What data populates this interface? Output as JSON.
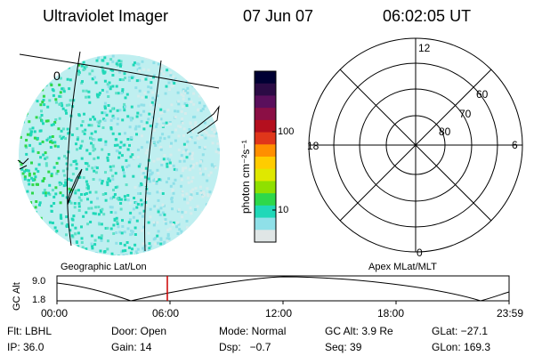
{
  "header": {
    "instrument": "Ultraviolet Imager",
    "date": "07 Jun 07",
    "time": "06:02:05 UT"
  },
  "colorbar": {
    "unit_label": "photon cm⁻²s⁻¹",
    "ticks": [
      "100",
      "10"
    ],
    "colors": [
      "#000033",
      "#2b0b45",
      "#5a0f5c",
      "#8b0f45",
      "#b40f1e",
      "#e0361a",
      "#ff8f00",
      "#ffcc00",
      "#dfe800",
      "#8fe000",
      "#2ed84a",
      "#20d8b8",
      "#8fe0e8",
      "#e0e6e6"
    ]
  },
  "left_panel": {
    "label": "Geographic Lat/Lon",
    "map_marker": "0"
  },
  "right_panel": {
    "label": "Apex MLat/MLT",
    "mlt_labels": {
      "top": "12",
      "right": "6",
      "bottom": "0",
      "left": "18"
    },
    "lat_labels": [
      "60",
      "70",
      "80"
    ]
  },
  "timeline": {
    "ylabel": "GC Alt",
    "yticks": [
      "9.0",
      "1.8"
    ],
    "xticks": [
      "00:00",
      "06:00",
      "12:00",
      "18:00",
      "23:59"
    ],
    "cursor_color": "#cc0000"
  },
  "info": {
    "flt": "Flt: LBHL",
    "ip": "IP: 36.0",
    "door": "Door: Open",
    "gain": "Gain: 14",
    "mode": "Mode: Normal",
    "dsp": "Dsp:   −0.7",
    "gc_alt": "GC Alt: 3.9 Re",
    "seq": "Seq: 39",
    "glat": "GLat: −27.1",
    "glon": "GLon: 169.3"
  }
}
